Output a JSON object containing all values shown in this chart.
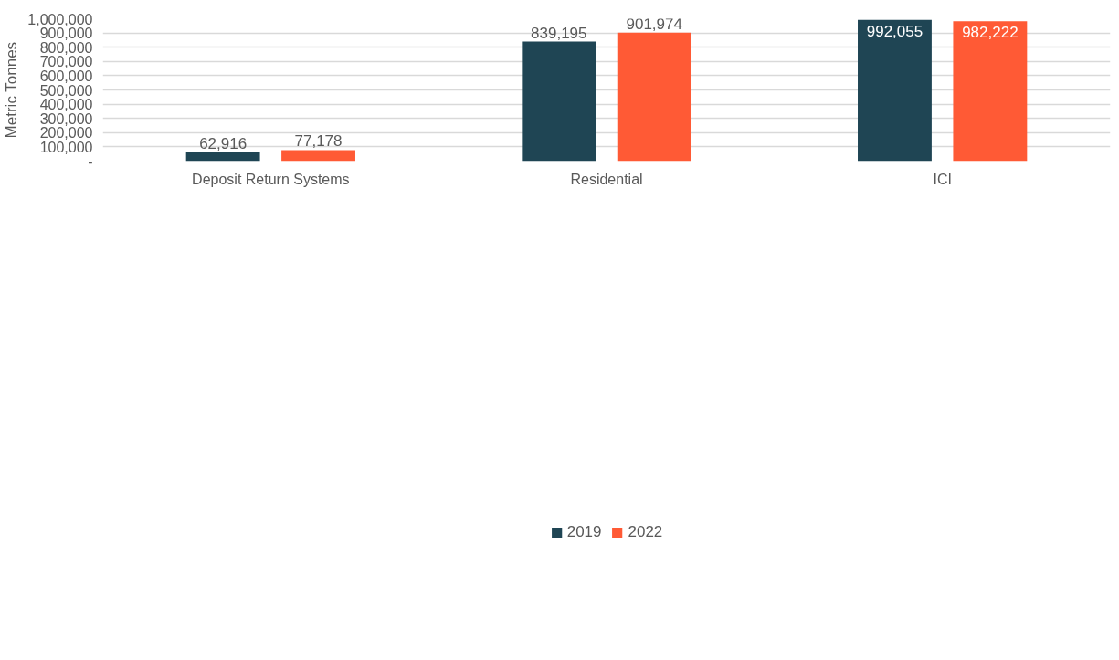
{
  "chart_data": {
    "type": "bar",
    "ylabel": "Metric Tonnes",
    "categories": [
      "Deposit Return Systems",
      "Residential",
      "ICI"
    ],
    "series": [
      {
        "name": "2019",
        "color": "#1f4554",
        "values": [
          62916,
          839195,
          992055
        ],
        "value_labels": [
          "62,916",
          "839,195",
          "992,055"
        ]
      },
      {
        "name": "2022",
        "color": "#ff5a35",
        "values": [
          77178,
          901974,
          982222
        ],
        "value_labels": [
          "77,178",
          "901,974",
          "982,222"
        ]
      }
    ],
    "ylim": [
      0,
      1000000
    ],
    "yticks": [
      {
        "value": 0,
        "label": "-"
      },
      {
        "value": 100000,
        "label": "100,000"
      },
      {
        "value": 200000,
        "label": "200,000"
      },
      {
        "value": 300000,
        "label": "300,000"
      },
      {
        "value": 400000,
        "label": "400,000"
      },
      {
        "value": 500000,
        "label": "500,000"
      },
      {
        "value": 600000,
        "label": "600,000"
      },
      {
        "value": 700000,
        "label": "700,000"
      },
      {
        "value": 800000,
        "label": "800,000"
      },
      {
        "value": 900000,
        "label": "900,000"
      },
      {
        "value": 1000000,
        "label": "1,000,000"
      }
    ],
    "grid": "y",
    "legend": "bottom"
  }
}
